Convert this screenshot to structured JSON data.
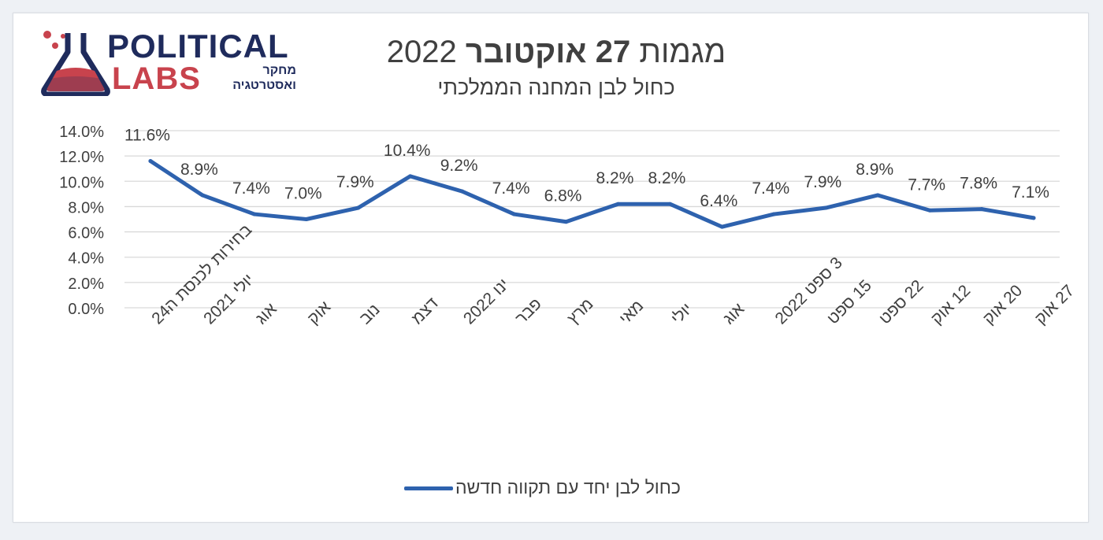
{
  "logo": {
    "line1": "POLITICAL",
    "line2": "LABS",
    "sub_line1": "מחקר",
    "sub_line2": "ואסטרטגיה"
  },
  "header": {
    "title_prefix": "מגמות",
    "title_bold": "27 אוקטובר",
    "title_suffix": "2022",
    "subtitle": "כחול לבן המחנה הממלכתי"
  },
  "chart_data": {
    "type": "line",
    "title": "מגמות 27 אוקטובר 2022",
    "subtitle": "כחול לבן המחנה הממלכתי",
    "categories": [
      "בחירות לכנסת ה24",
      "יולי 2021",
      "אוג",
      "אוק",
      "נוב",
      "דצמ",
      "ינו 2022",
      "פבר",
      "מרץ",
      "מאי",
      "יולי",
      "אוג",
      "3 ספט 2022",
      "15 ספט",
      "22 ספט",
      "12 אוק",
      "20 אוק",
      "27 אוק"
    ],
    "series": [
      {
        "name": "כחול לבן יחד עם תקווה חדשה",
        "values": [
          11.6,
          8.9,
          7.4,
          7.0,
          7.9,
          10.4,
          9.2,
          7.4,
          6.8,
          8.2,
          8.2,
          6.4,
          7.4,
          7.9,
          8.9,
          7.7,
          7.8,
          7.1
        ],
        "labels": [
          "11.6%",
          "8.9%",
          "7.4%",
          "7.0%",
          "7.9%",
          "10.4%",
          "9.2%",
          "7.4%",
          "6.8%",
          "8.2%",
          "8.2%",
          "6.4%",
          "7.4%",
          "7.9%",
          "8.9%",
          "7.7%",
          "7.8%",
          "7.1%"
        ],
        "color": "#2e62ae"
      }
    ],
    "y_ticks": [
      "0.0%",
      "2.0%",
      "4.0%",
      "6.0%",
      "8.0%",
      "10.0%",
      "12.0%",
      "14.0%"
    ],
    "ylim": [
      0,
      14
    ],
    "y_step": 2,
    "grid": true,
    "legend_position": "bottom"
  },
  "colors": {
    "line": "#2e62ae",
    "grid": "#d9d9d9",
    "text": "#404040",
    "brand_navy": "#1f2b5c",
    "brand_red": "#c8434d"
  }
}
